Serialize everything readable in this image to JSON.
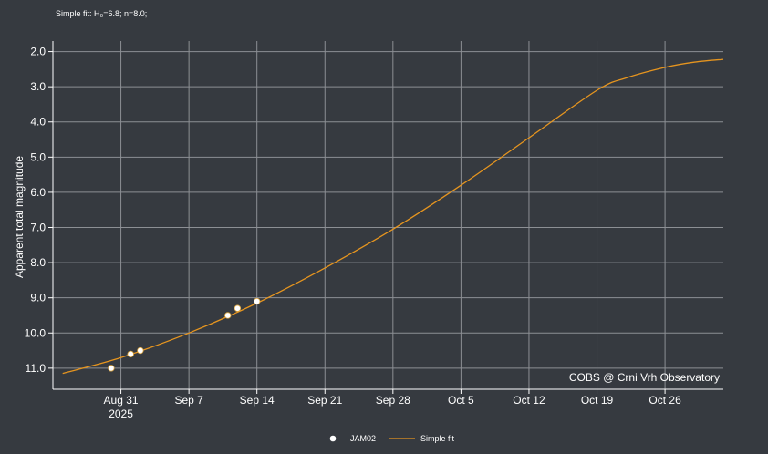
{
  "header": {
    "fit_label": "Simple fit: H₀=6.8; n=8.0;"
  },
  "chart_data": {
    "type": "scatter",
    "title": "",
    "xlabel": "",
    "ylabel": "Apparent total magnitude",
    "y_inverted": true,
    "ylim": [
      11.6,
      1.7
    ],
    "xlim": [
      "2025-08-24",
      "2025-11-01"
    ],
    "x_ticks": [
      {
        "date": "2025-08-31",
        "label": "Aug 31",
        "sublabel": "2025"
      },
      {
        "date": "2025-09-07",
        "label": "Sep 7"
      },
      {
        "date": "2025-09-14",
        "label": "Sep 14"
      },
      {
        "date": "2025-09-21",
        "label": "Sep 21"
      },
      {
        "date": "2025-09-28",
        "label": "Sep 28"
      },
      {
        "date": "2025-10-05",
        "label": "Oct 5"
      },
      {
        "date": "2025-10-12",
        "label": "Oct 12"
      },
      {
        "date": "2025-10-19",
        "label": "Oct 19"
      },
      {
        "date": "2025-10-26",
        "label": "Oct 26"
      }
    ],
    "y_ticks": [
      "2.0",
      "3.0",
      "4.0",
      "5.0",
      "6.0",
      "7.0",
      "8.0",
      "9.0",
      "10.0",
      "11.0"
    ],
    "grid": true,
    "watermark": "COBS @ Crni Vrh Observatory",
    "series": [
      {
        "name": "JAM02",
        "kind": "scatter",
        "color": "#ffffff",
        "points": [
          {
            "x": "2025-08-30",
            "y": 11.0
          },
          {
            "x": "2025-09-01",
            "y": 10.6
          },
          {
            "x": "2025-09-02",
            "y": 10.5
          },
          {
            "x": "2025-09-11",
            "y": 9.5
          },
          {
            "x": "2025-09-12",
            "y": 9.3
          },
          {
            "x": "2025-09-14",
            "y": 9.1
          }
        ]
      },
      {
        "name": "Simple fit",
        "kind": "line",
        "color": "#e6951f",
        "points": [
          {
            "x": "2025-08-25",
            "y": 11.15
          },
          {
            "x": "2025-08-31",
            "y": 10.7
          },
          {
            "x": "2025-09-07",
            "y": 10.0
          },
          {
            "x": "2025-09-14",
            "y": 9.15
          },
          {
            "x": "2025-09-21",
            "y": 8.15
          },
          {
            "x": "2025-09-28",
            "y": 7.05
          },
          {
            "x": "2025-10-05",
            "y": 5.8
          },
          {
            "x": "2025-10-12",
            "y": 4.45
          },
          {
            "x": "2025-10-19",
            "y": 3.1
          },
          {
            "x": "2025-10-22",
            "y": 2.75
          },
          {
            "x": "2025-10-26",
            "y": 2.45
          },
          {
            "x": "2025-10-29",
            "y": 2.3
          },
          {
            "x": "2025-11-01",
            "y": 2.22
          }
        ]
      }
    ],
    "legend": {
      "position": "bottom-center",
      "entries": [
        "JAM02",
        "Simple fit"
      ]
    }
  }
}
